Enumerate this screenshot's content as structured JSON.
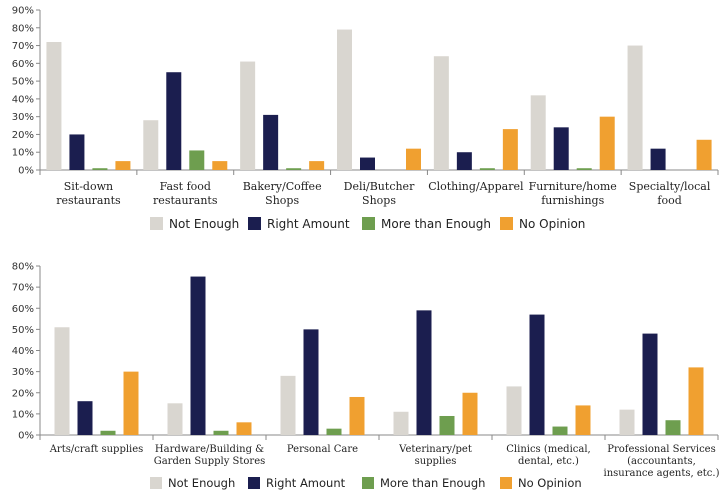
{
  "colors": {
    "not_enough": "#d9d6d0",
    "right_amount": "#1b1e4f",
    "more_than_enough": "#6e9e4f",
    "no_opinion": "#f0a030"
  },
  "chart_data": [
    {
      "type": "bar",
      "title": "",
      "xlabel": "",
      "ylabel": "",
      "ylim": [
        0,
        90
      ],
      "yticks": [
        "0%",
        "10%",
        "20%",
        "30%",
        "40%",
        "50%",
        "60%",
        "70%",
        "80%",
        "90%"
      ],
      "categories": [
        [
          "Sit-down",
          "restaurants"
        ],
        [
          "Fast food",
          "restaurants"
        ],
        [
          "Bakery/Coffee",
          "Shops"
        ],
        [
          "Deli/Butcher",
          "Shops"
        ],
        [
          "Clothing/Apparel"
        ],
        [
          "Furniture/home",
          "furnishings"
        ],
        [
          "Specialty/local",
          "food"
        ]
      ],
      "series": [
        {
          "name": "Not Enough",
          "values": [
            72,
            28,
            61,
            79,
            64,
            42,
            70
          ]
        },
        {
          "name": "Right Amount",
          "values": [
            20,
            55,
            31,
            7,
            10,
            24,
            12
          ]
        },
        {
          "name": "More than Enough",
          "values": [
            1,
            11,
            1,
            0,
            1,
            1,
            0
          ]
        },
        {
          "name": "No Opinion",
          "values": [
            5,
            5,
            5,
            12,
            23,
            30,
            17
          ]
        }
      ],
      "legend": "bottom"
    },
    {
      "type": "bar",
      "title": "",
      "xlabel": "",
      "ylabel": "",
      "ylim": [
        0,
        80
      ],
      "yticks": [
        "0%",
        "10%",
        "20%",
        "30%",
        "40%",
        "50%",
        "60%",
        "70%",
        "80%"
      ],
      "categories": [
        [
          "Arts/craft supplies"
        ],
        [
          "Hardware/Building &",
          "Garden Supply Stores"
        ],
        [
          "Personal Care"
        ],
        [
          "Veterinary/pet",
          "supplies"
        ],
        [
          "Clinics (medical,",
          "dental, etc.)"
        ],
        [
          "Professional Services",
          "(accountants,",
          "insurance agents, etc.)"
        ]
      ],
      "series": [
        {
          "name": "Not Enough",
          "values": [
            51,
            15,
            28,
            11,
            23,
            12
          ]
        },
        {
          "name": "Right Amount",
          "values": [
            16,
            75,
            50,
            59,
            57,
            48
          ]
        },
        {
          "name": "More than Enough",
          "values": [
            2,
            2,
            3,
            9,
            4,
            7
          ]
        },
        {
          "name": "No Opinion",
          "values": [
            30,
            6,
            18,
            20,
            14,
            32
          ]
        }
      ],
      "legend": "bottom"
    }
  ]
}
